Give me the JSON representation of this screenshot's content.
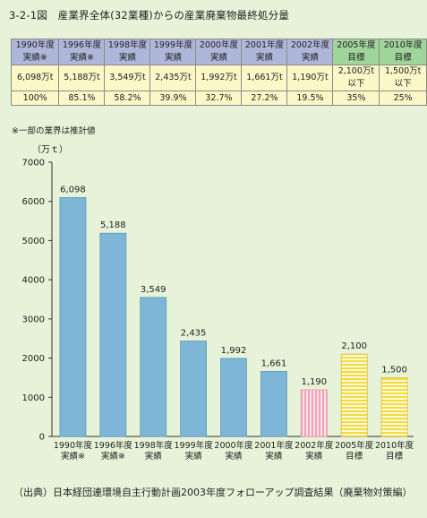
{
  "title": "3-2-1図　産業界全体(32業種)からの産業廃棄物最終処分量",
  "table": {
    "headers": [
      [
        "1990年度",
        "実績※"
      ],
      [
        "1996年度",
        "実績※"
      ],
      [
        "1998年度",
        "実績"
      ],
      [
        "1999年度",
        "実績"
      ],
      [
        "2000年度",
        "実績"
      ],
      [
        "2001年度",
        "実績"
      ],
      [
        "2002年度",
        "実績"
      ],
      [
        "2005年度",
        "目標"
      ],
      [
        "2010年度",
        "目標"
      ]
    ],
    "amounts": [
      [
        "6,098万t"
      ],
      [
        "5,188万t"
      ],
      [
        "3,549万t"
      ],
      [
        "2,435万t"
      ],
      [
        "1,992万t"
      ],
      [
        "1,661万t"
      ],
      [
        "1,190万t"
      ],
      [
        "2,100万t",
        "以下"
      ],
      [
        "1,500万t",
        "以下"
      ]
    ],
    "ratios": [
      "100%",
      "85.1%",
      "58.2%",
      "39.9%",
      "32.7%",
      "27.2%",
      "19.5%",
      "35%",
      "25%"
    ],
    "target_columns": [
      7,
      8
    ]
  },
  "note": "※一部の業界は推計値",
  "source": "（出典）日本経団連環境自主行動計画2003年度フォローアップ調査結果（廃棄物対策編）",
  "colors": {
    "actual": "#7db6d6",
    "latest": "#f7b3c6",
    "target": "#f8e15a",
    "header": "#aeb7da",
    "header_target": "#9fd49a",
    "value_bg": "#fbf7c6",
    "background": "#e6f3d8"
  },
  "chart_data": {
    "type": "bar",
    "unit_label": "（万ｔ）",
    "categories": [
      [
        "1990年度",
        "実績※"
      ],
      [
        "1996年度",
        "実績※"
      ],
      [
        "1998年度",
        "実績"
      ],
      [
        "1999年度",
        "実績"
      ],
      [
        "2000年度",
        "実績"
      ],
      [
        "2001年度",
        "実績"
      ],
      [
        "2002年度",
        "実績"
      ],
      [
        "2005年度",
        "目標"
      ],
      [
        "2010年度",
        "目標"
      ]
    ],
    "values": [
      6098,
      5188,
      3549,
      2435,
      1992,
      1661,
      1190,
      2100,
      1500
    ],
    "value_labels": [
      "6,098",
      "5,188",
      "3,549",
      "2,435",
      "1,992",
      "1,661",
      "1,190",
      "2,100",
      "1,500"
    ],
    "bar_styles": [
      "actual",
      "actual",
      "actual",
      "actual",
      "actual",
      "actual",
      "latest",
      "target",
      "target"
    ],
    "ylim": [
      0,
      7000
    ],
    "yticks": [
      0,
      1000,
      2000,
      3000,
      4000,
      5000,
      6000,
      7000
    ],
    "grid": false,
    "legend": "none"
  }
}
